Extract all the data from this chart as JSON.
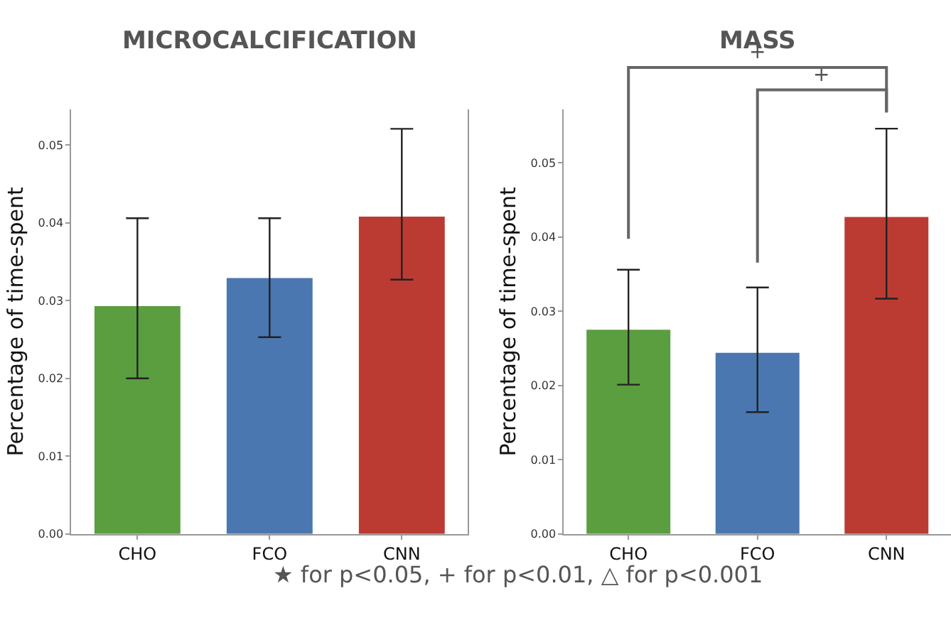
{
  "chart_data": [
    {
      "type": "bar",
      "title": "MICROCALCIFICATION",
      "ylabel": "Percentage of time-spent",
      "categories": [
        "CHO",
        "FCO",
        "CNN"
      ],
      "values": [
        0.0293,
        0.0329,
        0.0408
      ],
      "colors": [
        "#5a9e3f",
        "#4a77af",
        "#bb3b33"
      ],
      "errors": [
        [
          0.02,
          0.0406
        ],
        [
          0.0253,
          0.0406
        ],
        [
          0.0327,
          0.0521
        ]
      ],
      "ylim": [
        0,
        0.0546
      ],
      "yticks": [
        {
          "value": 0,
          "label": "0.00"
        },
        0.01,
        0.02,
        0.03,
        0.04,
        0.05
      ],
      "annotations": [
        "★ for p<0.05, + for p<0.01, △ for p<0.001"
      ]
    },
    {
      "type": "bar",
      "title": "MASS",
      "ylabel": "Percentage of time-spent",
      "categories": [
        "CHO",
        "FCO",
        "CNN"
      ],
      "values": [
        0.0275,
        0.0244,
        0.0427
      ],
      "colors": [
        "#5a9e3f",
        "#4a77af",
        "#bb3b33"
      ],
      "errors": [
        [
          0.0201,
          0.0356
        ],
        [
          0.0164,
          0.0332
        ],
        [
          0.0317,
          0.0546
        ]
      ],
      "ylim": [
        0,
        0.0572
      ],
      "yticks": [
        {
          "value": 0,
          "label": "0.00"
        },
        0.01,
        0.02,
        0.03,
        0.04,
        0.05
      ],
      "annotations": [
        "+",
        "+"
      ]
    }
  ]
}
